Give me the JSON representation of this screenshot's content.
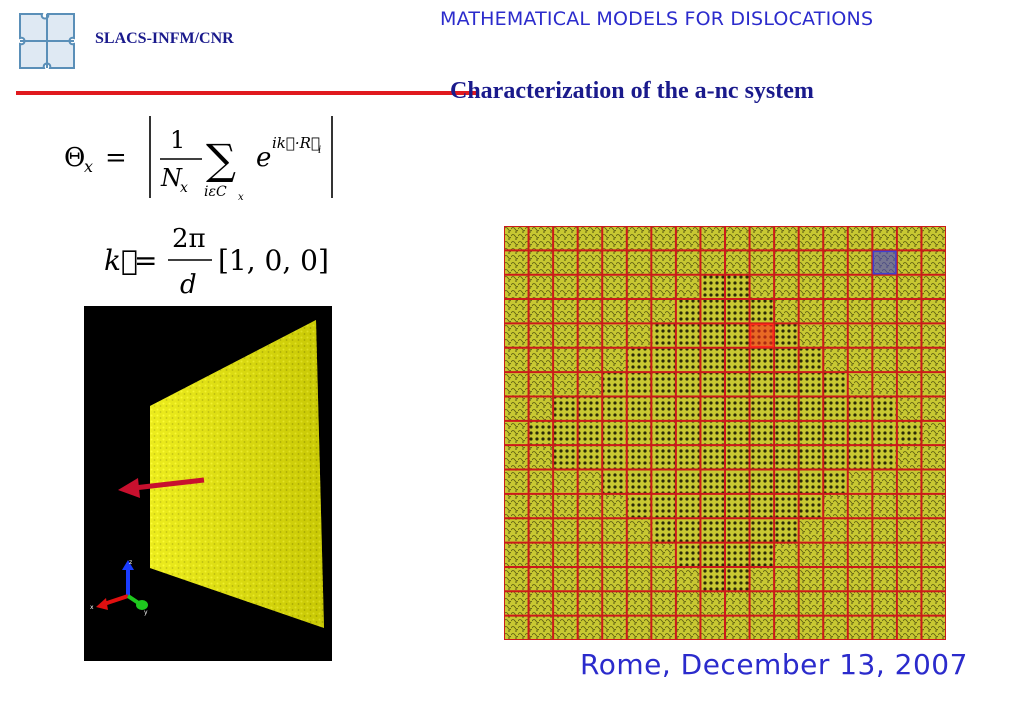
{
  "header": {
    "org": "SLACS-INFM/CNR",
    "title": "MATHEMATICAL MODELS FOR DISLOCATIONS"
  },
  "slide": {
    "subtitle": "Characterization of the a-nc system"
  },
  "formulas": {
    "theta_lhs": "Θ",
    "theta_sub": "x",
    "theta_num": "1",
    "theta_den": "N",
    "theta_den_sub": "x",
    "sum_symbol": "∑",
    "sum_index": "iεC",
    "sum_index_sub": "x",
    "exp_base": "e",
    "exp_power": "ik⃗·R⃗",
    "exp_power_sub": "i",
    "k_lhs": "k⃗",
    "k_num": "2π",
    "k_den": "d",
    "k_vector": "[1, 0, 0]"
  },
  "simulation": {
    "axis_x": "x",
    "axis_y": "y",
    "axis_z": "z",
    "colors": {
      "background": "#000000",
      "atoms": "#f2f20a",
      "arrow": "#c8102e",
      "axis_x": "#e01010",
      "axis_y": "#1ec81e",
      "axis_z": "#1a3cff"
    }
  },
  "grid_image": {
    "rows": 17,
    "cols": 18,
    "colors": {
      "cell": "#c8c832",
      "cell_dark": "#7a7a1e",
      "grid_line": "#cc1a1a",
      "highlight_red": "#ff2a1a",
      "highlight_blue": "#4040d0"
    }
  },
  "footer": {
    "date": "Rome, December 13, 2007"
  }
}
